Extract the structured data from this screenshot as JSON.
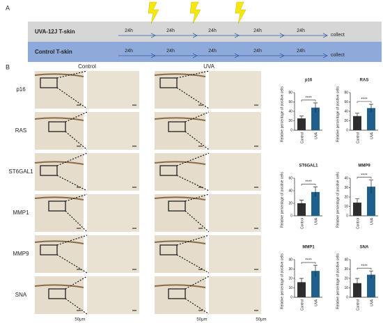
{
  "panel_labels": {
    "a": "A",
    "b": "B"
  },
  "timeline": {
    "rows": [
      {
        "name": "UVA-12J T-skin",
        "intervals": [
          "24h",
          "24h",
          "24h",
          "24h",
          "24h"
        ],
        "end": "collect"
      },
      {
        "name": "Control T-skin",
        "intervals": [
          "24h",
          "24h",
          "24h",
          "24h",
          "24h"
        ],
        "end": "collect"
      }
    ]
  },
  "micrographs": {
    "columns": [
      "Control",
      "UVA"
    ],
    "rows": [
      "p16",
      "RAS",
      "ST6GAL1",
      "MMP1",
      "MMP9",
      "SNA"
    ],
    "scale_bar": "50μm"
  },
  "chart_data": [
    {
      "type": "bar",
      "title": "p16",
      "ylabel": "Relative percentage of positive cells",
      "categories": [
        "Control",
        "UVA"
      ],
      "values": [
        25,
        48
      ],
      "errors": [
        5,
        10
      ],
      "colors": [
        "#2e2e2e",
        "#1f5f8b"
      ],
      "significance": "****",
      "ylim": [
        0,
        80
      ],
      "yticks": [
        0,
        20,
        40,
        60,
        80
      ]
    },
    {
      "type": "bar",
      "title": "RAS",
      "ylabel": "Relative percentage of positive cells",
      "categories": [
        "Control",
        "UVA"
      ],
      "values": [
        30,
        47
      ],
      "errors": [
        6,
        8
      ],
      "colors": [
        "#2e2e2e",
        "#1f5f8b"
      ],
      "significance": "****",
      "ylim": [
        0,
        80
      ],
      "yticks": [
        0,
        20,
        40,
        60,
        80
      ]
    },
    {
      "type": "bar",
      "title": "ST6GAL1",
      "ylabel": "Relative percentage of positive cells",
      "categories": [
        "Control",
        "UVA"
      ],
      "values": [
        20,
        38
      ],
      "errors": [
        5,
        8
      ],
      "colors": [
        "#2e2e2e",
        "#1f5f8b"
      ],
      "significance": "****",
      "ylim": [
        0,
        60
      ],
      "yticks": [
        0,
        20,
        40,
        60
      ]
    },
    {
      "type": "bar",
      "title": "MMP9",
      "ylabel": "Relative percentage of positive cells",
      "categories": [
        "Control",
        "UVA"
      ],
      "values": [
        14,
        31
      ],
      "errors": [
        4,
        7
      ],
      "colors": [
        "#2e2e2e",
        "#1f5f8b"
      ],
      "significance": "****",
      "ylim": [
        0,
        40
      ],
      "yticks": [
        0,
        10,
        20,
        30,
        40
      ]
    },
    {
      "type": "bar",
      "title": "MMP1",
      "ylabel": "Relative percentage of positive cells",
      "categories": [
        "Control",
        "UVA"
      ],
      "values": [
        16,
        28
      ],
      "errors": [
        4,
        6
      ],
      "colors": [
        "#2e2e2e",
        "#1f5f8b"
      ],
      "significance": "****",
      "ylim": [
        0,
        40
      ],
      "yticks": [
        0,
        10,
        20,
        30,
        40
      ]
    },
    {
      "type": "bar",
      "title": "SNA",
      "ylabel": "Relative percentage of positive cells",
      "categories": [
        "Control",
        "UVA"
      ],
      "values": [
        15,
        24
      ],
      "errors": [
        5,
        4
      ],
      "colors": [
        "#2e2e2e",
        "#1f5f8b"
      ],
      "significance": "****",
      "ylim": [
        0,
        40
      ],
      "yticks": [
        0,
        10,
        20,
        30,
        40
      ]
    }
  ]
}
